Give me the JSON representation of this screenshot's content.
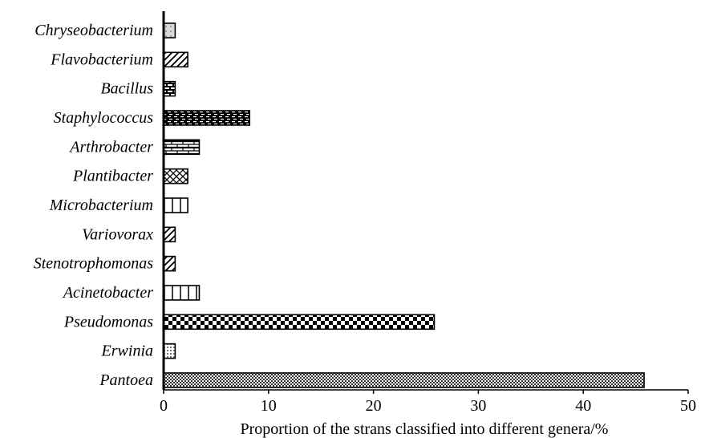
{
  "chart_data": {
    "type": "bar",
    "orientation": "horizontal",
    "categories": [
      "Chryseobacterium",
      "Flavobacterium",
      "Bacillus",
      "Staphylococcus",
      "Arthrobacter",
      "Plantibacter",
      "Microbacterium",
      "Variovorax",
      "Stenotrophomonas",
      "Acinetobacter",
      "Pseudomonas",
      "Erwinia",
      "Pantoea"
    ],
    "values": [
      1.1,
      2.3,
      1.1,
      8.2,
      3.4,
      2.3,
      2.3,
      1.1,
      1.1,
      3.4,
      25.8,
      1.1,
      45.8
    ],
    "patterns": [
      "dots",
      "diagonal",
      "brick-dark",
      "dashes-dark",
      "brick",
      "crosshatch",
      "vertical-wide",
      "diagonal",
      "diagonal",
      "vertical-wide",
      "checker-large",
      "dots-dense",
      "checker-fine"
    ],
    "xlabel": "Proportion of the strans classified into different genera/%",
    "ylabel": "",
    "xlim": [
      0,
      50
    ],
    "x_ticks": [
      "0",
      "10",
      "20",
      "30",
      "40",
      "50"
    ],
    "grid": false,
    "legend": false
  }
}
